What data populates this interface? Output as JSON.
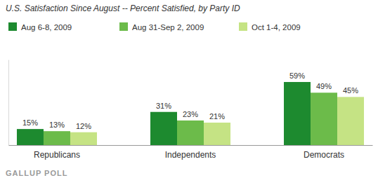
{
  "chart_data": {
    "type": "bar",
    "title": "U.S. Satisfaction Since August -- Percent Satisfied, by Party ID",
    "categories": [
      "Republicans",
      "Independents",
      "Democrats"
    ],
    "series": [
      {
        "name": "Aug 6-8, 2009",
        "color": "#1d8a2f",
        "values": [
          15,
          31,
          59
        ],
        "value_labels": [
          "15%",
          "31%",
          "59%"
        ]
      },
      {
        "name": "Aug 31-Sep 2, 2009",
        "color": "#6cbb4a",
        "values": [
          13,
          23,
          49
        ],
        "value_labels": [
          "13%",
          "23%",
          "49%"
        ]
      },
      {
        "name": "Oct 1-4, 2009",
        "color": "#c5e384",
        "values": [
          12,
          21,
          45
        ],
        "value_labels": [
          "12%",
          "21%",
          "45%"
        ]
      }
    ],
    "ylim": [
      0,
      80
    ],
    "legend": "top-left",
    "data_labels": true,
    "tick_labels": "x",
    "source": "GALLUP POLL"
  }
}
